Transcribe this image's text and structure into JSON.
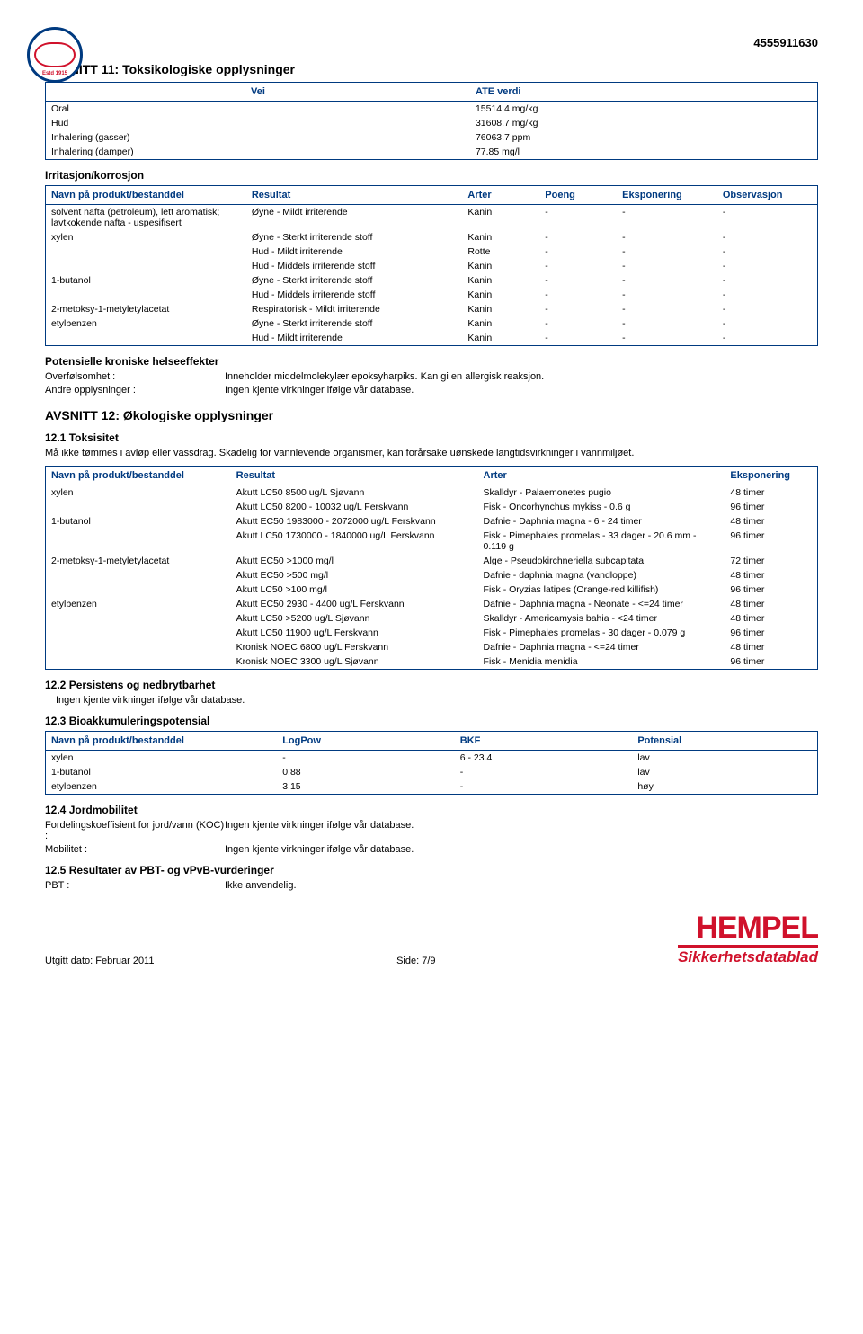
{
  "doc_id": "4555911630",
  "section11_title": "AVSNITT 11: Toksikologiske opplysninger",
  "ate_table": {
    "header_vei": "Vei",
    "header_ate": "ATE verdi",
    "rows": [
      {
        "vei": "Oral",
        "verdi": "15514.4 mg/kg"
      },
      {
        "vei": "Hud",
        "verdi": "31608.7 mg/kg"
      },
      {
        "vei": "Inhalering (gasser)",
        "verdi": "76063.7 ppm"
      },
      {
        "vei": "Inhalering (damper)",
        "verdi": "77.85 mg/l"
      }
    ]
  },
  "irr_heading": "Irritasjon/korrosjon",
  "irr_table": {
    "h1": "Navn på produkt/bestanddel",
    "h2": "Resultat",
    "h3": "Arter",
    "h4": "Poeng",
    "h5": "Eksponering",
    "h6": "Observasjon",
    "rows": [
      {
        "n": "solvent nafta (petroleum), lett aromatisk; lavtkokende nafta - uspesifisert",
        "r": "Øyne - Mildt irriterende",
        "a": "Kanin",
        "p": "-",
        "e": "-",
        "o": "-"
      },
      {
        "n": "xylen",
        "r": "Øyne - Sterkt irriterende stoff",
        "a": "Kanin",
        "p": "-",
        "e": "-",
        "o": "-"
      },
      {
        "n": "",
        "r": "Hud - Mildt irriterende",
        "a": "Rotte",
        "p": "-",
        "e": "-",
        "o": "-"
      },
      {
        "n": "",
        "r": "Hud - Middels irriterende stoff",
        "a": "Kanin",
        "p": "-",
        "e": "-",
        "o": "-"
      },
      {
        "n": "1-butanol",
        "r": "Øyne - Sterkt irriterende stoff",
        "a": "Kanin",
        "p": "-",
        "e": "-",
        "o": "-"
      },
      {
        "n": "",
        "r": "Hud - Middels irriterende stoff",
        "a": "Kanin",
        "p": "-",
        "e": "-",
        "o": "-"
      },
      {
        "n": "2-metoksy-1-metyletylacetat",
        "r": "Respiratorisk - Mildt irriterende",
        "a": "Kanin",
        "p": "-",
        "e": "-",
        "o": "-"
      },
      {
        "n": "etylbenzen",
        "r": "Øyne - Sterkt irriterende stoff",
        "a": "Kanin",
        "p": "-",
        "e": "-",
        "o": "-"
      },
      {
        "n": "",
        "r": "Hud - Mildt irriterende",
        "a": "Kanin",
        "p": "-",
        "e": "-",
        "o": "-"
      }
    ]
  },
  "chronic_heading": "Potensielle kroniske helseeffekter",
  "overf_label": "Overfølsomhet :",
  "overf_value": "Inneholder middelmolekylær epoksyharpiks. Kan gi en allergisk reaksjon.",
  "andre_label": "Andre opplysninger :",
  "andre_value": "Ingen kjente virkninger ifølge vår database.",
  "section12_title": "AVSNITT 12: Økologiske opplysninger",
  "s12_1_title": "12.1 Toksisitet",
  "s12_1_note": "Må ikke tømmes i avløp eller vassdrag. Skadelig for vannlevende organismer, kan forårsake uønskede langtidsvirkninger i vannmiljøet.",
  "tox_table": {
    "h1": "Navn på produkt/bestanddel",
    "h2": "Resultat",
    "h3": "Arter",
    "h4": "Eksponering",
    "rows": [
      {
        "n": "xylen",
        "r": "Akutt LC50 8500 ug/L Sjøvann",
        "a": "Skalldyr - Palaemonetes pugio",
        "e": "48 timer"
      },
      {
        "n": "",
        "r": "Akutt LC50 8200 - 10032 ug/L Ferskvann",
        "a": "Fisk - Oncorhynchus mykiss - 0.6 g",
        "e": "96 timer"
      },
      {
        "n": "1-butanol",
        "r": "Akutt EC50 1983000 - 2072000 ug/L Ferskvann",
        "a": "Dafnie - Daphnia magna - 6 - 24 timer",
        "e": "48 timer"
      },
      {
        "n": "",
        "r": "Akutt LC50 1730000 - 1840000 ug/L Ferskvann",
        "a": "Fisk - Pimephales promelas - 33 dager - 20.6 mm - 0.119 g",
        "e": "96 timer"
      },
      {
        "n": "2-metoksy-1-metyletylacetat",
        "r": "Akutt EC50 >1000 mg/l",
        "a": "Alge - Pseudokirchneriella subcapitata",
        "e": "72 timer"
      },
      {
        "n": "",
        "r": "Akutt EC50 >500 mg/l",
        "a": "Dafnie - daphnia magna (vandloppe)",
        "e": "48 timer"
      },
      {
        "n": "",
        "r": "Akutt LC50 >100 mg/l",
        "a": "Fisk - Oryzias latipes (Orange-red killifish)",
        "e": "96 timer"
      },
      {
        "n": "etylbenzen",
        "r": "Akutt EC50 2930 - 4400 ug/L Ferskvann",
        "a": "Dafnie - Daphnia magna - Neonate - <=24 timer",
        "e": "48 timer"
      },
      {
        "n": "",
        "r": "Akutt LC50 >5200 ug/L Sjøvann",
        "a": "Skalldyr - Americamysis bahia - <24 timer",
        "e": "48 timer"
      },
      {
        "n": "",
        "r": "Akutt LC50 11900 ug/L Ferskvann",
        "a": "Fisk - Pimephales promelas - 30 dager - 0.079 g",
        "e": "96 timer"
      },
      {
        "n": "",
        "r": "Kronisk NOEC 6800 ug/L Ferskvann",
        "a": "Dafnie - Daphnia magna - <=24 timer",
        "e": "48 timer"
      },
      {
        "n": "",
        "r": "Kronisk NOEC 3300 ug/L Sjøvann",
        "a": "Fisk - Menidia menidia",
        "e": "96 timer"
      }
    ]
  },
  "s12_2_title": "12.2 Persistens og nedbrytbarhet",
  "s12_2_body": "Ingen kjente virkninger ifølge vår database.",
  "s12_3_title": "12.3 Bioakkumuleringspotensial",
  "bio_table": {
    "h1": "Navn på produkt/bestanddel",
    "h2": "LogPow",
    "h3": "BKF",
    "h4": "Potensial",
    "rows": [
      {
        "n": "xylen",
        "l": "-",
        "b": "6 - 23.4",
        "p": "lav"
      },
      {
        "n": "1-butanol",
        "l": "0.88",
        "b": "-",
        "p": "lav"
      },
      {
        "n": "etylbenzen",
        "l": "3.15",
        "b": "-",
        "p": "høy"
      }
    ]
  },
  "s12_4_title": "12.4 Jordmobilitet",
  "ford_label": "Fordelingskoeffisient for jord/vann (KOC) :",
  "ford_value": "Ingen kjente virkninger ifølge vår database.",
  "mob_label": "Mobilitet :",
  "mob_value": "Ingen kjente virkninger ifølge vår database.",
  "s12_5_title": "12.5 Resultater av PBT- og vPvB-vurderinger",
  "pbt_label": "PBT :",
  "pbt_value": "Ikke anvendelig.",
  "footer_left": "Utgitt dato: Februar 2011",
  "footer_mid": "Side: 7/9",
  "brand_name": "HEMPEL",
  "brand_sub": "Sikkerhetsdatablad"
}
